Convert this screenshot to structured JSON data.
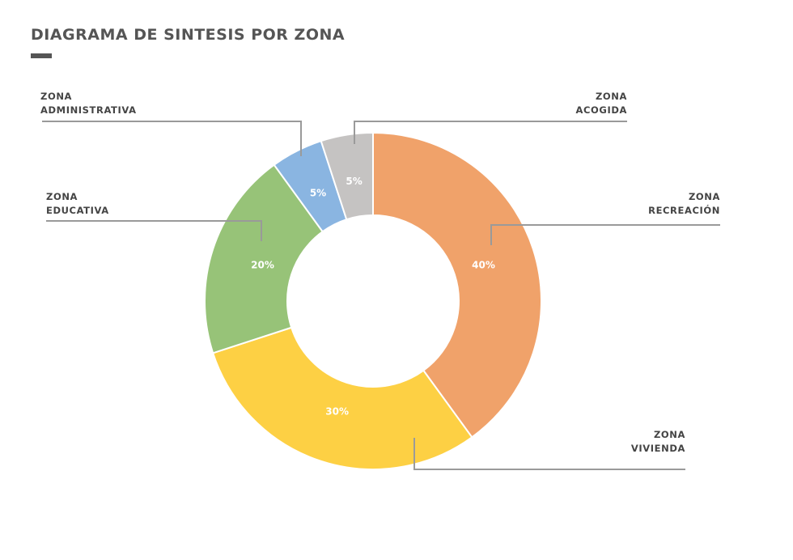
{
  "page": {
    "title": "DIAGRAMA DE SINTESIS POR ZONA"
  },
  "chart_data": {
    "type": "pie",
    "variant": "donut",
    "title": "DIAGRAMA DE SINTESIS POR ZONA",
    "start": "top",
    "direction": "clockwise",
    "slices": [
      {
        "label_lines": [
          "ZONA",
          "RECREACIÓN"
        ],
        "value": 40,
        "display": "40%",
        "color": "#F0A26A"
      },
      {
        "label_lines": [
          "ZONA",
          "VIVIENDA"
        ],
        "value": 30,
        "display": "30%",
        "color": "#FDD044"
      },
      {
        "label_lines": [
          "ZONA",
          "EDUCATIVA"
        ],
        "value": 20,
        "display": "20%",
        "color": "#97C378"
      },
      {
        "label_lines": [
          "ZONA",
          "ADMINISTRATIVA"
        ],
        "value": 5,
        "display": "5%",
        "color": "#8AB5E1"
      },
      {
        "label_lines": [
          "ZONA",
          "ACOGIDA"
        ],
        "value": 5,
        "display": "5%",
        "color": "#C5C3C2"
      }
    ],
    "leader_line_color": "#9A9A9A"
  }
}
